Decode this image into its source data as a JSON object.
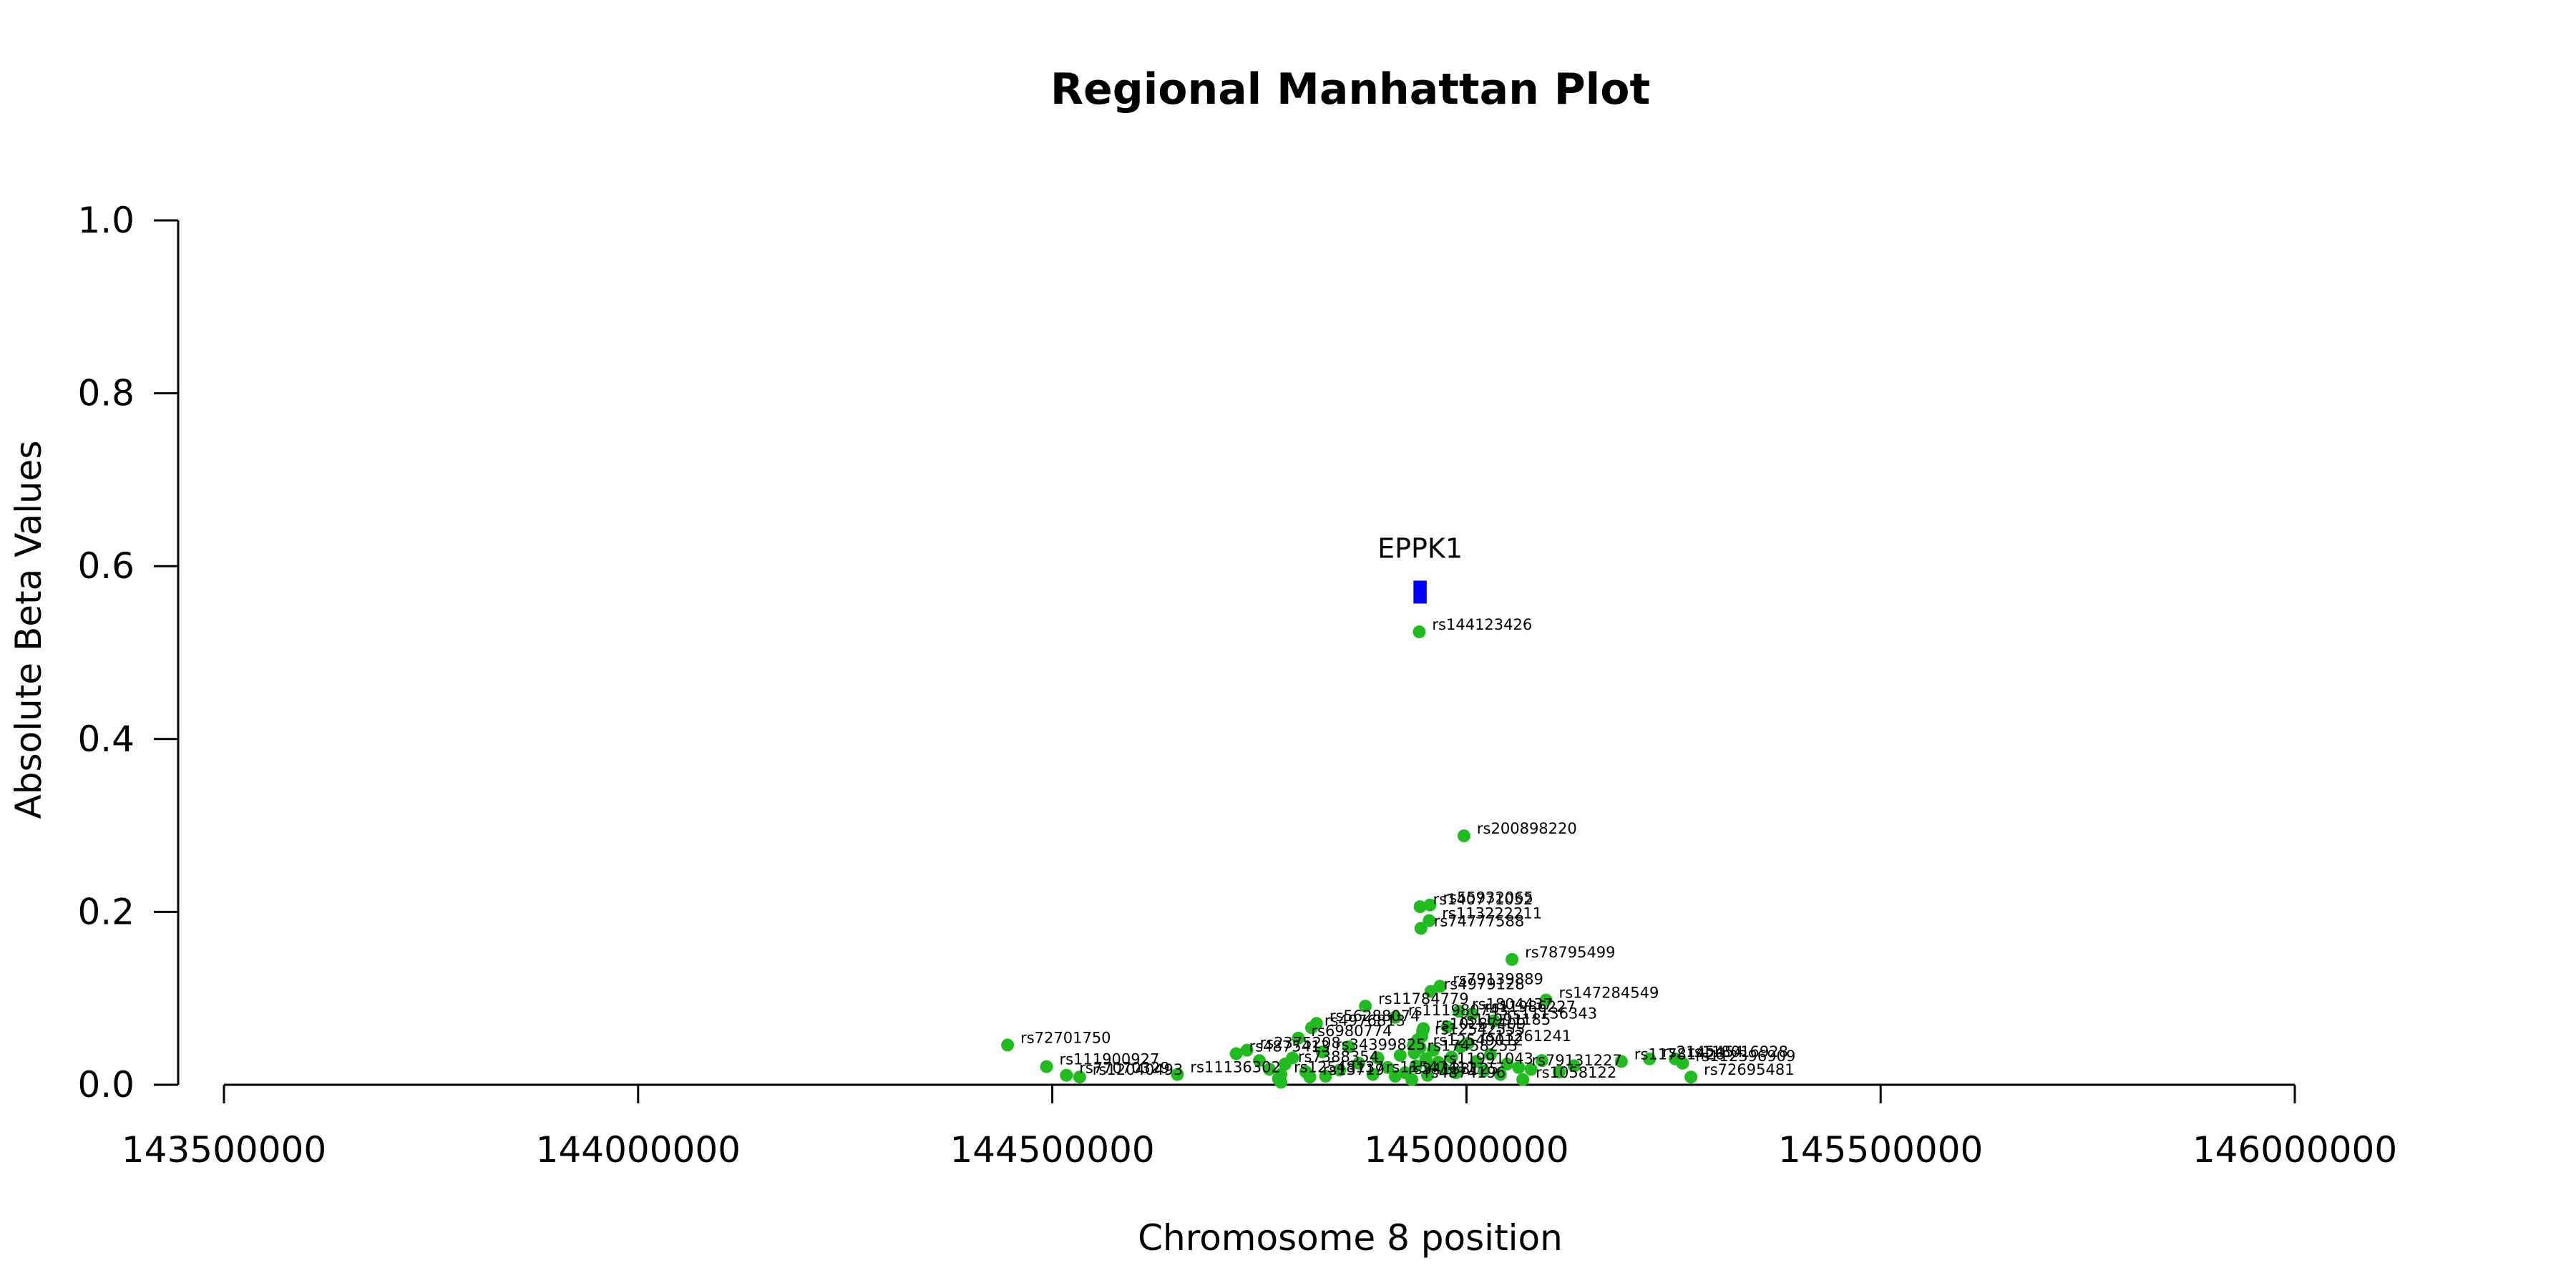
{
  "chart_data": {
    "type": "scatter",
    "title": "Regional Manhattan Plot",
    "xlabel": "Chromosome 8 position",
    "ylabel": "Absolute Beta Values",
    "xlim": [
      143500000,
      146000000
    ],
    "ylim": [
      0,
      1
    ],
    "xticks": [
      143500000,
      144000000,
      144500000,
      145000000,
      145500000,
      146000000
    ],
    "xtick_labels": [
      "143500000",
      "144000000",
      "144500000",
      "145000000",
      "145500000",
      "146000000"
    ],
    "yticks": [
      0,
      0.2,
      0.4,
      0.6,
      0.8,
      1.0
    ],
    "ytick_labels": [
      "0.0",
      "0.2",
      "0.4",
      "0.6",
      "0.8",
      "1.0"
    ],
    "grid": false,
    "point_color": "#22BB22",
    "gene_color": "#0000FF",
    "genes": [
      {
        "name": "EPPK1",
        "start": 144936000,
        "end": 144952000,
        "y": 0.57
      }
    ],
    "points": [
      {
        "x": 144943000,
        "y": 0.524,
        "label": "rs144123426"
      },
      {
        "x": 144997000,
        "y": 0.288,
        "label": "rs200898220"
      },
      {
        "x": 144944000,
        "y": 0.206,
        "label": "rs140771052"
      },
      {
        "x": 144956000,
        "y": 0.208,
        "label": "rs55932065"
      },
      {
        "x": 144955000,
        "y": 0.19,
        "label": "rs113222211"
      },
      {
        "x": 144945000,
        "y": 0.181,
        "label": "rs74777588"
      },
      {
        "x": 145055000,
        "y": 0.145,
        "label": "rs78795499"
      },
      {
        "x": 144968000,
        "y": 0.114,
        "label": "rs79139889"
      },
      {
        "x": 144957000,
        "y": 0.108,
        "label": "rs4979128"
      },
      {
        "x": 145096000,
        "y": 0.098,
        "label": "rs147284549"
      },
      {
        "x": 144878000,
        "y": 0.091,
        "label": "rs11784779"
      },
      {
        "x": 144991000,
        "y": 0.085,
        "label": "rs1804437"
      },
      {
        "x": 145007000,
        "y": 0.082,
        "label": "rs11986227"
      },
      {
        "x": 144914000,
        "y": 0.078,
        "label": "rs111980743"
      },
      {
        "x": 145033000,
        "y": 0.074,
        "label": "rs11136343"
      },
      {
        "x": 144819000,
        "y": 0.071,
        "label": "rs56288074"
      },
      {
        "x": 144813000,
        "y": 0.066,
        "label": "rs4976813"
      },
      {
        "x": 144977000,
        "y": 0.067,
        "label": "rs11991185"
      },
      {
        "x": 144947000,
        "y": 0.062,
        "label": "rs10287409"
      },
      {
        "x": 144946000,
        "y": 0.056,
        "label": "rs12542555"
      },
      {
        "x": 144797000,
        "y": 0.054,
        "label": "rs6980774"
      },
      {
        "x": 145002000,
        "y": 0.048,
        "label": "rs13261241"
      },
      {
        "x": 144944000,
        "y": 0.043,
        "label": "rs12549012"
      },
      {
        "x": 144446000,
        "y": 0.046,
        "label": "rs72701750"
      },
      {
        "x": 144735000,
        "y": 0.04,
        "label": "rs2375208"
      },
      {
        "x": 144722000,
        "y": 0.036,
        "label": "rs4875413"
      },
      {
        "x": 144826000,
        "y": 0.038,
        "label": "rs34399825"
      },
      {
        "x": 144937000,
        "y": 0.037,
        "label": "rs17458253"
      },
      {
        "x": 145221000,
        "y": 0.03,
        "label": "rs2145454"
      },
      {
        "x": 145187000,
        "y": 0.027,
        "label": "rs11781426"
      },
      {
        "x": 145252000,
        "y": 0.03,
        "label": "rs118016928"
      },
      {
        "x": 145261000,
        "y": 0.025,
        "label": "rs112396909"
      },
      {
        "x": 144493000,
        "y": 0.021,
        "label": "rs111900927"
      },
      {
        "x": 144781000,
        "y": 0.024,
        "label": "rs7388354"
      },
      {
        "x": 144956000,
        "y": 0.022,
        "label": "rs11991043"
      },
      {
        "x": 145063000,
        "y": 0.02,
        "label": "rs79131227"
      },
      {
        "x": 145271000,
        "y": 0.009,
        "label": "rs72695481"
      },
      {
        "x": 144651000,
        "y": 0.012,
        "label": "rs11136302"
      },
      {
        "x": 144517000,
        "y": 0.011,
        "label": "rs77070329"
      },
      {
        "x": 144533000,
        "y": 0.009,
        "label": "rs12040493"
      },
      {
        "x": 144776000,
        "y": 0.012,
        "label": "rs12548137"
      },
      {
        "x": 144811000,
        "y": 0.009,
        "label": "rs13719"
      },
      {
        "x": 144887000,
        "y": 0.012,
        "label": "rs11547411"
      },
      {
        "x": 144914000,
        "y": 0.01,
        "label": "rs34138125"
      },
      {
        "x": 144934000,
        "y": 0.006,
        "label": "rs4874196"
      },
      {
        "x": 145068000,
        "y": 0.006,
        "label": "rs1058122"
      },
      {
        "x": 144773000,
        "y": 0.007,
        "label": ""
      },
      {
        "x": 144776000,
        "y": 0.003,
        "label": ""
      },
      {
        "x": 144806000,
        "y": 0.015,
        "label": ""
      },
      {
        "x": 144847000,
        "y": 0.017,
        "label": ""
      },
      {
        "x": 144870000,
        "y": 0.025,
        "label": ""
      },
      {
        "x": 144893000,
        "y": 0.031,
        "label": ""
      },
      {
        "x": 144905000,
        "y": 0.02,
        "label": ""
      },
      {
        "x": 144920000,
        "y": 0.034,
        "label": ""
      },
      {
        "x": 144926000,
        "y": 0.014,
        "label": ""
      },
      {
        "x": 144936000,
        "y": 0.046,
        "label": ""
      },
      {
        "x": 144939000,
        "y": 0.022,
        "label": ""
      },
      {
        "x": 144941000,
        "y": 0.052,
        "label": ""
      },
      {
        "x": 144948000,
        "y": 0.065,
        "label": ""
      },
      {
        "x": 144951000,
        "y": 0.03,
        "label": ""
      },
      {
        "x": 144953000,
        "y": 0.011,
        "label": ""
      },
      {
        "x": 144960000,
        "y": 0.04,
        "label": ""
      },
      {
        "x": 144966000,
        "y": 0.026,
        "label": ""
      },
      {
        "x": 144972000,
        "y": 0.019,
        "label": ""
      },
      {
        "x": 144982000,
        "y": 0.032,
        "label": ""
      },
      {
        "x": 144987000,
        "y": 0.014,
        "label": ""
      },
      {
        "x": 144993000,
        "y": 0.044,
        "label": ""
      },
      {
        "x": 145012000,
        "y": 0.027,
        "label": ""
      },
      {
        "x": 145021000,
        "y": 0.016,
        "label": ""
      },
      {
        "x": 145029000,
        "y": 0.035,
        "label": ""
      },
      {
        "x": 145041000,
        "y": 0.012,
        "label": ""
      },
      {
        "x": 145049000,
        "y": 0.024,
        "label": ""
      },
      {
        "x": 145078000,
        "y": 0.018,
        "label": ""
      },
      {
        "x": 145091000,
        "y": 0.028,
        "label": ""
      },
      {
        "x": 145112000,
        "y": 0.015,
        "label": ""
      },
      {
        "x": 145130000,
        "y": 0.022,
        "label": ""
      },
      {
        "x": 144750000,
        "y": 0.028,
        "label": ""
      },
      {
        "x": 144762000,
        "y": 0.018,
        "label": ""
      },
      {
        "x": 144790000,
        "y": 0.031,
        "label": ""
      },
      {
        "x": 144830000,
        "y": 0.01,
        "label": ""
      },
      {
        "x": 144858000,
        "y": 0.044,
        "label": ""
      }
    ]
  }
}
